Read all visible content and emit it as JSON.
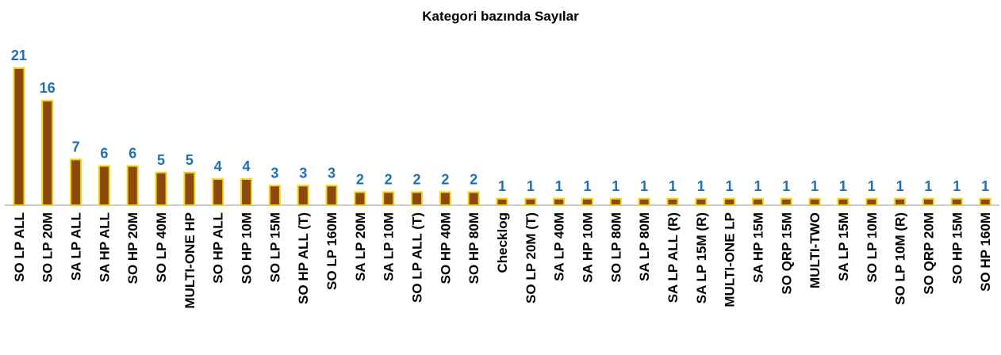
{
  "chart_data": {
    "type": "bar",
    "title": "Kategori bazında Sayılar",
    "categories": [
      "SO LP ALL",
      "SO LP 20M",
      "SA LP ALL",
      "SA HP ALL",
      "SO HP 20M",
      "SO LP 40M",
      "MULTI-ONE HP",
      "SO HP ALL",
      "SO HP 10M",
      "SO LP 15M",
      "SO HP ALL (T)",
      "SO LP 160M",
      "SA LP 20M",
      "SA LP 10M",
      "SO LP ALL (T)",
      "SO HP 40M",
      "SO HP 80M",
      "Checklog",
      "SO LP 20M (T)",
      "SA LP 40M",
      "SA HP 10M",
      "SO LP 80M",
      "SA LP 80M",
      "SA LP ALL (R)",
      "SA LP 15M (R)",
      "MULTI-ONE LP",
      "SA HP 15M",
      "SO QRP 15M",
      "MULTI-TWO",
      "SA LP 15M",
      "SO LP 10M",
      "SO LP 10M (R)",
      "SO QRP 20M",
      "SO HP 15M",
      "SO HP 160M"
    ],
    "values": [
      21,
      16,
      7,
      6,
      6,
      5,
      5,
      4,
      4,
      3,
      3,
      3,
      2,
      2,
      2,
      2,
      2,
      1,
      1,
      1,
      1,
      1,
      1,
      1,
      1,
      1,
      1,
      1,
      1,
      1,
      1,
      1,
      1,
      1,
      1
    ],
    "color": "#8b4a0c",
    "edge_color": "#f2d21b",
    "label_color": "#1f6fb5"
  }
}
